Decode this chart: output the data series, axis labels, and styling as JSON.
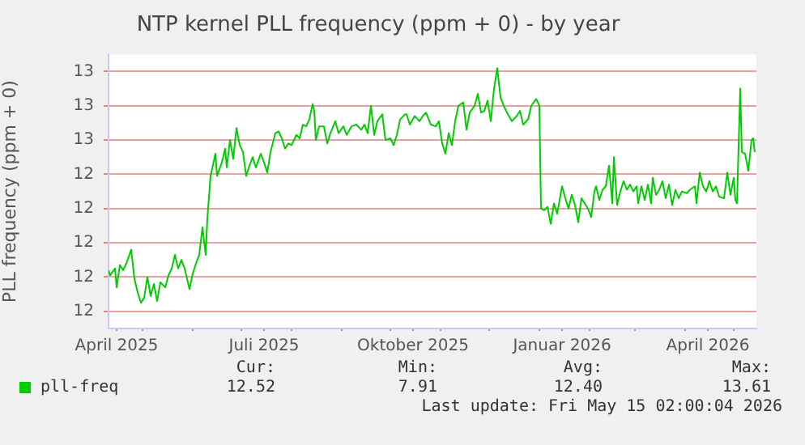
{
  "chart_data": {
    "type": "line",
    "title": "NTP kernel PLL frequency (ppm + 0) - by year",
    "ylabel": "PLL frequency (ppm + 0)",
    "xlim": [
      "2025-04-10",
      "2026-05-15"
    ],
    "ylim": [
      11.5,
      13.1
    ],
    "xticks": [
      {
        "value": "2025-04-15",
        "label": "April 2025"
      },
      {
        "value": "2025-05-01",
        "label": null
      },
      {
        "value": "2025-06-01",
        "label": null
      },
      {
        "value": "2025-07-01",
        "label": null
      },
      {
        "value": "2025-07-15",
        "label": "Juli 2025"
      },
      {
        "value": "2025-08-01",
        "label": null
      },
      {
        "value": "2025-09-01",
        "label": null
      },
      {
        "value": "2025-10-01",
        "label": null
      },
      {
        "value": "2025-10-15",
        "label": "Oktober 2025"
      },
      {
        "value": "2025-11-01",
        "label": null
      },
      {
        "value": "2025-12-01",
        "label": null
      },
      {
        "value": "2026-01-01",
        "label": null
      },
      {
        "value": "2026-01-15",
        "label": "Januar 2026"
      },
      {
        "value": "2026-02-01",
        "label": null
      },
      {
        "value": "2026-03-01",
        "label": null
      },
      {
        "value": "2026-04-01",
        "label": null
      },
      {
        "value": "2026-04-15",
        "label": "April 2026"
      },
      {
        "value": "2026-05-01",
        "label": null
      }
    ],
    "yticks": [
      {
        "value": 11.6,
        "label": "12"
      },
      {
        "value": 11.8,
        "label": "12"
      },
      {
        "value": 12.0,
        "label": "12"
      },
      {
        "value": 12.2,
        "label": "12"
      },
      {
        "value": 12.4,
        "label": "12"
      },
      {
        "value": 12.6,
        "label": "13"
      },
      {
        "value": 12.8,
        "label": "13"
      },
      {
        "value": 13.0,
        "label": "13"
      }
    ],
    "grid": true,
    "legend": "bottom",
    "marker": "none",
    "line_style": "solid",
    "annotations": [
      "Cur:",
      "Min:",
      "Avg:",
      "Max:",
      "12.52",
      "7.91",
      "12.40",
      "13.61",
      "Last update: Fri May 15 02:00:04 2026"
    ],
    "x": [
      "2025-04-10",
      "2025-04-11",
      "2025-04-14",
      "2025-04-15",
      "2025-04-17",
      "2025-04-19",
      "2025-04-21",
      "2025-04-24",
      "2025-04-26",
      "2025-04-28",
      "2025-04-30",
      "2025-05-02",
      "2025-05-04",
      "2025-05-06",
      "2025-05-08",
      "2025-05-10",
      "2025-05-12",
      "2025-05-15",
      "2025-05-17",
      "2025-05-19",
      "2025-05-21",
      "2025-05-23",
      "2025-05-25",
      "2025-05-27",
      "2025-05-30",
      "2025-06-01",
      "2025-06-03",
      "2025-06-05",
      "2025-06-07",
      "2025-06-09",
      "2025-06-10",
      "2025-06-12",
      "2025-06-15",
      "2025-06-16",
      "2025-06-19",
      "2025-06-21",
      "2025-06-22",
      "2025-06-24",
      "2025-06-26",
      "2025-06-28",
      "2025-06-30",
      "2025-07-02",
      "2025-07-04",
      "2025-07-06",
      "2025-07-08",
      "2025-07-10",
      "2025-07-13",
      "2025-07-15",
      "2025-07-17",
      "2025-07-19",
      "2025-07-22",
      "2025-07-24",
      "2025-07-26",
      "2025-07-28",
      "2025-07-30",
      "2025-08-01",
      "2025-08-04",
      "2025-08-06",
      "2025-08-08",
      "2025-08-10",
      "2025-08-12",
      "2025-08-14",
      "2025-08-15",
      "2025-08-16",
      "2025-08-18",
      "2025-08-21",
      "2025-08-23",
      "2025-08-25",
      "2025-08-28",
      "2025-08-30",
      "2025-09-02",
      "2025-09-04",
      "2025-09-07",
      "2025-09-10",
      "2025-09-13",
      "2025-09-15",
      "2025-09-17",
      "2025-09-19",
      "2025-09-21",
      "2025-09-23",
      "2025-09-26",
      "2025-09-28",
      "2025-10-01",
      "2025-10-03",
      "2025-10-05",
      "2025-10-07",
      "2025-10-10",
      "2025-10-11",
      "2025-10-13",
      "2025-10-16",
      "2025-10-19",
      "2025-10-21",
      "2025-10-23",
      "2025-10-26",
      "2025-10-29",
      "2025-10-31",
      "2025-11-02",
      "2025-11-04",
      "2025-11-06",
      "2025-11-08",
      "2025-11-10",
      "2025-11-12",
      "2025-11-15",
      "2025-11-17",
      "2025-11-19",
      "2025-11-22",
      "2025-11-24",
      "2025-11-26",
      "2025-11-28",
      "2025-11-30",
      "2025-12-02",
      "2025-12-04",
      "2025-12-06",
      "2025-12-08",
      "2025-12-10",
      "2025-12-12",
      "2025-12-15",
      "2025-12-18",
      "2025-12-20",
      "2025-12-22",
      "2025-12-25",
      "2025-12-27",
      "2025-12-30",
      "2026-01-01",
      "2026-01-02",
      "2026-01-04",
      "2026-01-06",
      "2026-01-08",
      "2026-01-10",
      "2026-01-12",
      "2026-01-15",
      "2026-01-17",
      "2026-01-19",
      "2026-01-21",
      "2026-01-23",
      "2026-01-25",
      "2026-01-27",
      "2026-01-29",
      "2026-01-31",
      "2026-02-02",
      "2026-02-04",
      "2026-02-05",
      "2026-02-07",
      "2026-02-09",
      "2026-02-11",
      "2026-02-13",
      "2026-02-15",
      "2026-02-16",
      "2026-02-18",
      "2026-02-20",
      "2026-02-22",
      "2026-02-24",
      "2026-02-26",
      "2026-02-28",
      "2026-03-02",
      "2026-03-03",
      "2026-03-05",
      "2026-03-07",
      "2026-03-09",
      "2026-03-11",
      "2026-03-12",
      "2026-03-14",
      "2026-03-16",
      "2026-03-18",
      "2026-03-20",
      "2026-03-22",
      "2026-03-24",
      "2026-03-26",
      "2026-03-28",
      "2026-03-30",
      "2026-04-02",
      "2026-04-04",
      "2026-04-07",
      "2026-04-08",
      "2026-04-10",
      "2026-04-12",
      "2026-04-14",
      "2026-04-16",
      "2026-04-18",
      "2026-04-20",
      "2026-04-22",
      "2026-04-25",
      "2026-04-27",
      "2026-04-29",
      "2026-05-01",
      "2026-05-02",
      "2026-05-03",
      "2026-05-05",
      "2026-05-06",
      "2026-05-08",
      "2026-05-10",
      "2026-05-12",
      "2026-05-13",
      "2026-05-14"
    ],
    "series": [
      {
        "name": "pll-freq",
        "color": "#00cc00",
        "values": [
          11.84,
          11.81,
          11.85,
          11.74,
          11.87,
          11.84,
          11.88,
          11.96,
          11.79,
          11.71,
          11.65,
          11.68,
          11.8,
          11.69,
          11.76,
          11.66,
          11.77,
          11.74,
          11.81,
          11.85,
          11.93,
          11.85,
          11.9,
          11.85,
          11.73,
          11.82,
          11.88,
          11.93,
          12.09,
          11.93,
          12.14,
          12.39,
          12.52,
          12.39,
          12.47,
          12.55,
          12.44,
          12.6,
          12.49,
          12.67,
          12.57,
          12.53,
          12.39,
          12.45,
          12.5,
          12.44,
          12.52,
          12.47,
          12.41,
          12.53,
          12.64,
          12.65,
          12.61,
          12.55,
          12.58,
          12.57,
          12.63,
          12.61,
          12.69,
          12.68,
          12.72,
          12.81,
          12.77,
          12.6,
          12.68,
          12.68,
          12.58,
          12.64,
          12.71,
          12.64,
          12.68,
          12.63,
          12.68,
          12.69,
          12.66,
          12.69,
          12.64,
          12.8,
          12.63,
          12.71,
          12.75,
          12.6,
          12.61,
          12.57,
          12.63,
          12.72,
          12.75,
          12.75,
          12.69,
          12.74,
          12.71,
          12.74,
          12.76,
          12.69,
          12.68,
          12.71,
          12.58,
          12.52,
          12.64,
          12.57,
          12.71,
          12.8,
          12.82,
          12.66,
          12.76,
          12.8,
          12.87,
          12.76,
          12.77,
          12.83,
          12.71,
          12.9,
          13.02,
          12.85,
          12.8,
          12.76,
          12.71,
          12.74,
          12.77,
          12.69,
          12.72,
          12.8,
          12.84,
          12.8,
          12.2,
          12.19,
          12.21,
          12.11,
          12.23,
          12.17,
          12.33,
          12.26,
          12.2,
          12.28,
          12.22,
          12.12,
          12.26,
          12.23,
          12.2,
          12.15,
          12.3,
          12.33,
          12.25,
          12.31,
          12.33,
          12.45,
          12.23,
          12.5,
          12.22,
          12.3,
          12.36,
          12.31,
          12.34,
          12.3,
          12.33,
          12.23,
          12.33,
          12.25,
          12.34,
          12.23,
          12.38,
          12.28,
          12.31,
          12.36,
          12.26,
          12.34,
          12.22,
          12.31,
          12.26,
          12.3,
          12.29,
          12.31,
          12.33,
          12.23,
          12.41,
          12.33,
          12.3,
          12.36,
          12.3,
          12.33,
          12.27,
          12.26,
          12.41,
          12.28,
          12.38,
          12.25,
          12.23,
          12.9,
          12.53,
          12.52,
          12.42,
          12.6,
          12.61,
          12.53
        ]
      }
    ]
  }
}
